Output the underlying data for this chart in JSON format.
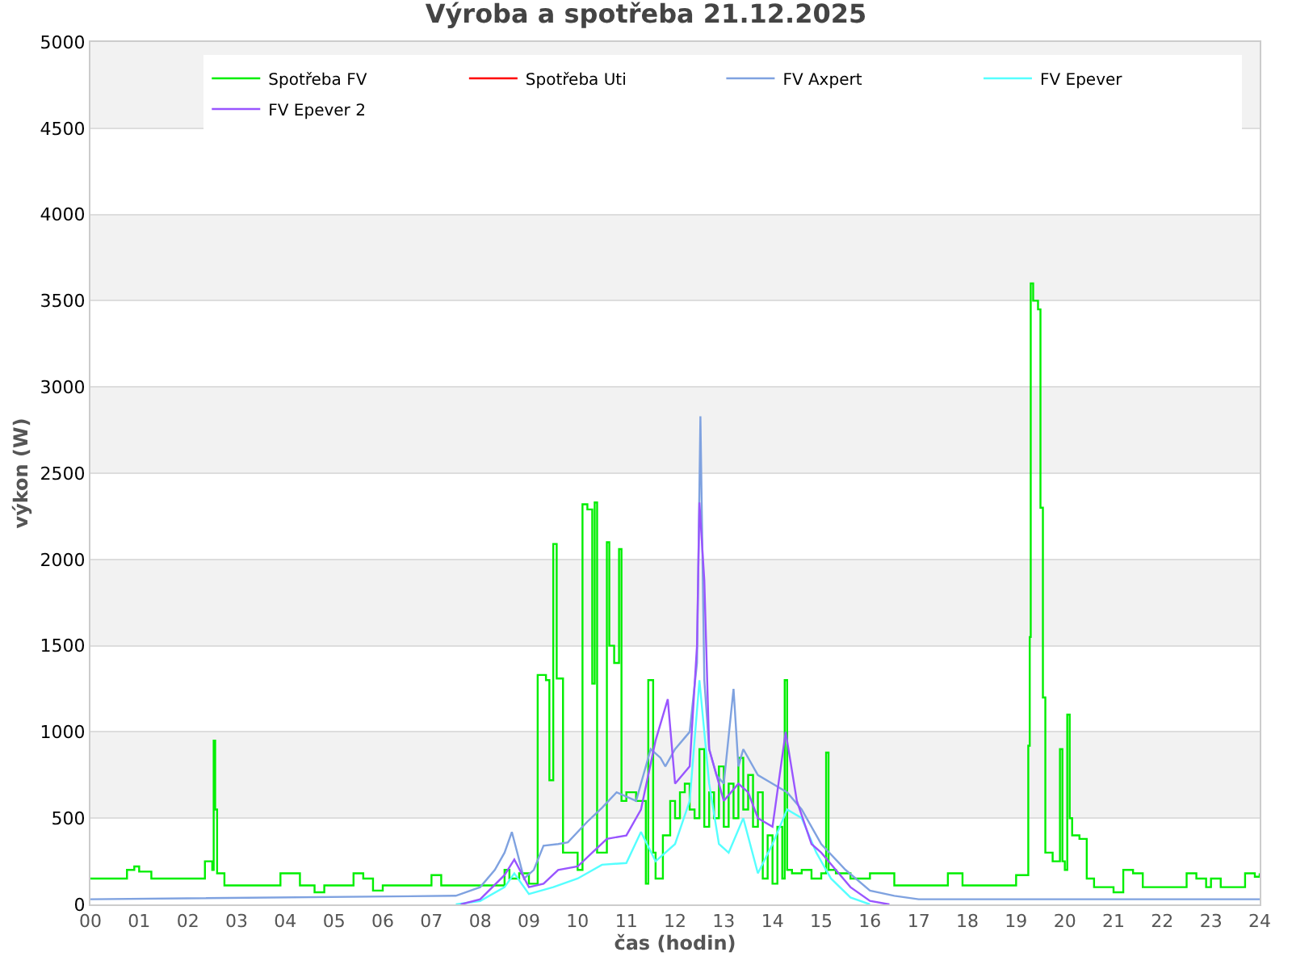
{
  "chart_data": {
    "type": "line",
    "title": "Výroba a spotřeba 21.12.2025",
    "xlabel": "čas (hodin)",
    "ylabel": "výkon (W)",
    "xlim": [
      0,
      24
    ],
    "ylim": [
      0,
      5000
    ],
    "xticks": [
      {
        "value": 0,
        "label": "00"
      },
      {
        "value": 1,
        "label": "01"
      },
      {
        "value": 2,
        "label": "02"
      },
      {
        "value": 3,
        "label": "03"
      },
      {
        "value": 4,
        "label": "04"
      },
      {
        "value": 5,
        "label": "05"
      },
      {
        "value": 6,
        "label": "06"
      },
      {
        "value": 7,
        "label": "07"
      },
      {
        "value": 8,
        "label": "08"
      },
      {
        "value": 9,
        "label": "09"
      },
      10,
      11,
      12,
      13,
      14,
      15,
      16,
      17,
      18,
      19,
      20,
      21,
      22,
      23,
      24
    ],
    "yticks": [
      0,
      500,
      1000,
      1500,
      2000,
      2500,
      3000,
      3500,
      4000,
      4500,
      5000
    ],
    "grid": "y",
    "legend": "top right",
    "marker": "none",
    "line_style": "solid",
    "bands": [
      {
        "axis": "y",
        "from": 500,
        "to": 1000,
        "color": "#f2f2f2"
      },
      {
        "axis": "y",
        "from": 1500,
        "to": 2000,
        "color": "#f2f2f2"
      },
      {
        "axis": "y",
        "from": 2500,
        "to": 3000,
        "color": "#f2f2f2"
      },
      {
        "axis": "y",
        "from": 3500,
        "to": 4000,
        "color": "#f2f2f2"
      },
      {
        "axis": "y",
        "from": 4500,
        "to": 5000,
        "color": "#f2f2f2"
      }
    ],
    "series": [
      {
        "name": "Spotřeba FV",
        "color": "#00ee00",
        "type": "step",
        "x": [
          0,
          0.75,
          0.9,
          1.0,
          1.25,
          2.25,
          2.35,
          2.5,
          2.53,
          2.56,
          2.6,
          2.75,
          3.85,
          3.9,
          4.3,
          4.6,
          4.8,
          4.9,
          5.4,
          5.6,
          5.8,
          6.0,
          6.8,
          7.0,
          7.2,
          8.4,
          8.5,
          8.6,
          8.8,
          9.0,
          9.18,
          9.35,
          9.42,
          9.5,
          9.57,
          9.7,
          10.0,
          10.1,
          10.2,
          10.3,
          10.35,
          10.4,
          10.6,
          10.65,
          10.75,
          10.85,
          10.9,
          11.0,
          11.2,
          11.4,
          11.45,
          11.55,
          11.6,
          11.75,
          11.9,
          12.0,
          12.1,
          12.2,
          12.3,
          12.4,
          12.5,
          12.6,
          12.7,
          12.8,
          12.9,
          13.0,
          13.1,
          13.2,
          13.3,
          13.4,
          13.5,
          13.6,
          13.7,
          13.8,
          13.9,
          14.0,
          14.1,
          14.2,
          14.25,
          14.3,
          14.4,
          14.6,
          14.8,
          15.0,
          15.1,
          15.15,
          15.3,
          15.6,
          16.0,
          16.5,
          17.0,
          17.6,
          17.9,
          18.2,
          19.0,
          19.25,
          19.28,
          19.3,
          19.35,
          19.45,
          19.5,
          19.55,
          19.6,
          19.75,
          19.9,
          19.95,
          20.0,
          20.05,
          20.1,
          20.15,
          20.3,
          20.45,
          20.6,
          20.9,
          21.0,
          21.2,
          21.4,
          21.6,
          22.5,
          22.7,
          22.9,
          23.0,
          23.2,
          23.7,
          23.9,
          24.0
        ],
        "values": [
          150,
          200,
          220,
          190,
          150,
          150,
          250,
          200,
          950,
          550,
          180,
          110,
          110,
          180,
          110,
          70,
          110,
          110,
          180,
          150,
          80,
          110,
          110,
          170,
          110,
          110,
          200,
          150,
          180,
          120,
          1330,
          1300,
          720,
          2090,
          1310,
          300,
          200,
          2320,
          2290,
          1280,
          2330,
          300,
          2100,
          1500,
          1400,
          2060,
          600,
          650,
          600,
          120,
          1300,
          300,
          150,
          400,
          600,
          500,
          650,
          700,
          550,
          500,
          900,
          450,
          650,
          500,
          800,
          450,
          700,
          500,
          850,
          550,
          750,
          450,
          650,
          150,
          400,
          120,
          450,
          150,
          1300,
          200,
          180,
          200,
          150,
          180,
          880,
          200,
          180,
          150,
          180,
          110,
          110,
          180,
          110,
          110,
          170,
          920,
          1550,
          3600,
          3500,
          3450,
          2300,
          1200,
          300,
          250,
          900,
          250,
          200,
          1100,
          500,
          400,
          380,
          150,
          100,
          100,
          70,
          200,
          180,
          100,
          180,
          150,
          100,
          150,
          100,
          180,
          160,
          180
        ]
      },
      {
        "name": "Spotřeba Uti",
        "color": "#ff0000"
      },
      {
        "name": "FV Axpert",
        "color": "#7fa2e0",
        "x": [
          0,
          7.5,
          8.0,
          8.3,
          8.5,
          8.65,
          8.9,
          9.1,
          9.3,
          9.6,
          9.8,
          10.2,
          10.5,
          10.8,
          11.2,
          11.5,
          11.7,
          11.8,
          12.0,
          12.3,
          12.45,
          12.52,
          12.6,
          12.7,
          12.85,
          13.0,
          13.2,
          13.3,
          13.4,
          13.7,
          14.0,
          14.3,
          14.6,
          15.0,
          15.5,
          16.0,
          16.5,
          17.0,
          24.0
        ],
        "values": [
          30,
          50,
          100,
          200,
          300,
          420,
          150,
          200,
          340,
          350,
          360,
          480,
          560,
          650,
          600,
          900,
          850,
          800,
          900,
          1000,
          1400,
          2830,
          1300,
          900,
          750,
          700,
          1250,
          800,
          900,
          750,
          700,
          650,
          550,
          350,
          200,
          80,
          50,
          30,
          30
        ]
      },
      {
        "name": "FV Epever",
        "color": "#55ffff",
        "x": [
          7.5,
          8.0,
          8.5,
          8.7,
          9.0,
          9.5,
          10.0,
          10.5,
          11.0,
          11.3,
          11.6,
          12.0,
          12.3,
          12.5,
          12.7,
          12.9,
          13.1,
          13.4,
          13.7,
          14.0,
          14.3,
          14.6,
          14.9,
          15.2,
          15.6,
          16.0
        ],
        "values": [
          0,
          20,
          100,
          180,
          60,
          100,
          150,
          230,
          240,
          420,
          250,
          350,
          600,
          1300,
          700,
          350,
          300,
          500,
          180,
          350,
          550,
          500,
          300,
          150,
          40,
          0
        ]
      },
      {
        "name": "FV Epever 2",
        "color": "#9955ff",
        "x": [
          7.6,
          8.0,
          8.5,
          8.7,
          9.0,
          9.3,
          9.6,
          10.0,
          10.3,
          10.6,
          11.0,
          11.3,
          11.6,
          11.85,
          12.0,
          12.3,
          12.45,
          12.5,
          12.6,
          12.7,
          13.0,
          13.3,
          13.5,
          13.7,
          14.0,
          14.27,
          14.5,
          14.8,
          15.0,
          15.3,
          15.6,
          16.0,
          16.4
        ],
        "values": [
          0,
          30,
          170,
          260,
          100,
          120,
          200,
          220,
          300,
          380,
          400,
          550,
          950,
          1190,
          700,
          800,
          1500,
          2330,
          1880,
          900,
          600,
          700,
          650,
          500,
          450,
          1000,
          600,
          350,
          300,
          200,
          100,
          20,
          0
        ]
      }
    ]
  }
}
